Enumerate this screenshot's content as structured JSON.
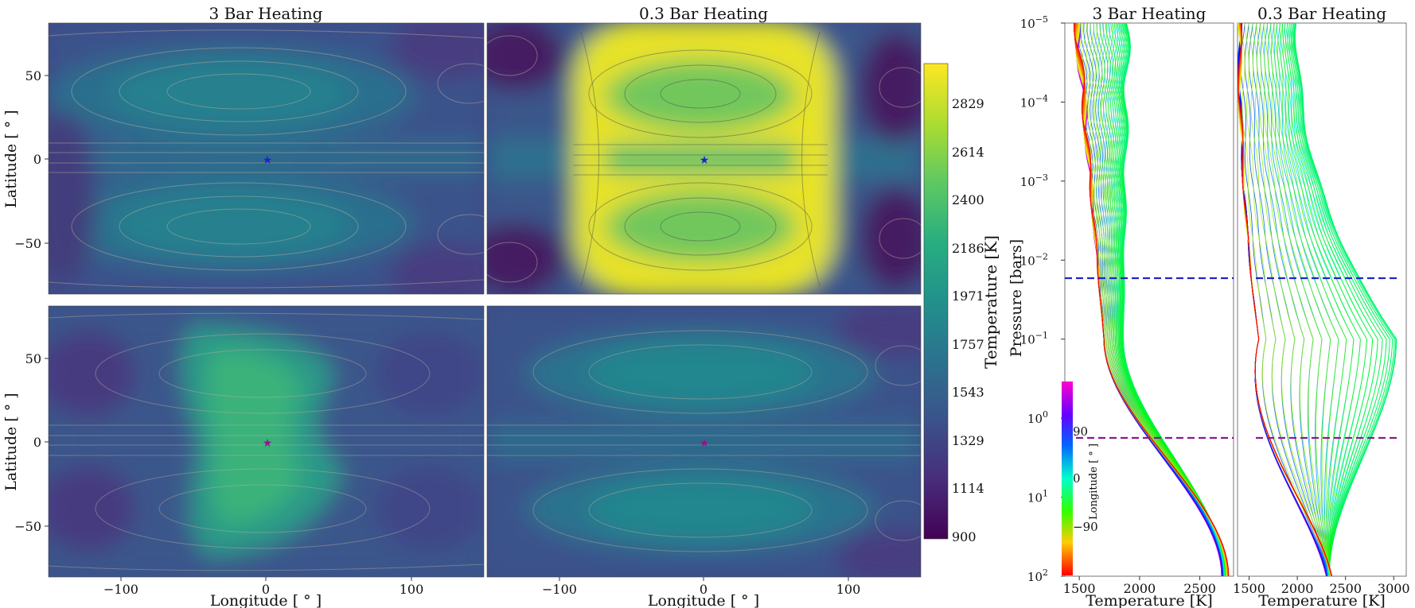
{
  "figure": {
    "map_titles": [
      "3 Bar Heating",
      "0.3 Bar Heating"
    ],
    "profile_titles": [
      "3 Bar Heating",
      "0.3 Bar Heating"
    ],
    "map_xlabel": "Longitude [$^\\circ$]",
    "map_ylabel": "Latitude [$^\\circ$]",
    "profile_xlabel": "Temperature [K]",
    "profile_ylabel": "Pressure [bars]",
    "colorbar_label": "Temperature [K]",
    "colorbar_ticks": [
      "2829",
      "2614",
      "2400",
      "2186",
      "1971",
      "1757",
      "1543",
      "1329",
      "1114",
      "900"
    ],
    "colormap": "viridis",
    "longitude_colormap": "gist_rainbow",
    "longitude_colorbar_label": "Longitude [$^\\circ$]",
    "longitude_colorbar_ticks": [
      "90",
      "0",
      "−90"
    ],
    "star_colors": [
      "#1f1fd6",
      "#8b1a8b"
    ],
    "dashed_line_colors": [
      "#2323c8",
      "#8b1a8b"
    ]
  },
  "chart_data": [
    {
      "type": "heatmap",
      "title": "3 Bar Heating",
      "row": "top",
      "xlabel": "",
      "ylabel": "Latitude [$^\\circ$]",
      "xlim": [
        -150,
        150
      ],
      "ylim": [
        -80,
        80
      ],
      "yticks": [
        "50",
        "0",
        "−50"
      ],
      "value_range_K": [
        1000,
        1900
      ],
      "hot_spot": {
        "lon": 0,
        "lat_halfwidth": 0
      },
      "marker": {
        "lon": 0,
        "lat": 0,
        "symbol": "star",
        "color": "#1f1fd6"
      },
      "streamlines": true
    },
    {
      "type": "heatmap",
      "title": "0.3 Bar Heating",
      "row": "top",
      "xlim": [
        -150,
        150
      ],
      "ylim": [
        -80,
        80
      ],
      "value_range_K": [
        1000,
        2950
      ],
      "hot_spot": {
        "lon_range": [
          -85,
          85
        ],
        "peak_K": 2950
      },
      "marker": {
        "lon": 0,
        "lat": 0,
        "symbol": "star",
        "color": "#1f1fd6"
      },
      "streamlines": true
    },
    {
      "type": "heatmap",
      "title": "",
      "row": "bottom",
      "xlabel": "Longitude [$^\\circ$]",
      "ylabel": "Latitude [$^\\circ$]",
      "xlim": [
        -150,
        150
      ],
      "ylim": [
        -80,
        80
      ],
      "xticks": [
        "−100",
        "0",
        "100"
      ],
      "yticks": [
        "50",
        "0",
        "−50"
      ],
      "value_range_K": [
        1100,
        2150
      ],
      "hot_spot": {
        "lon_range": [
          -50,
          60
        ],
        "peak_K": 2150
      },
      "marker": {
        "lon": 0,
        "lat": 0,
        "symbol": "star",
        "color": "#8b1a8b"
      },
      "streamlines": true
    },
    {
      "type": "heatmap",
      "title": "",
      "row": "bottom",
      "xlabel": "Longitude [$^\\circ$]",
      "xlim": [
        -150,
        150
      ],
      "ylim": [
        -80,
        80
      ],
      "xticks": [
        "−100",
        "0",
        "100"
      ],
      "value_range_K": [
        1000,
        1850
      ],
      "hot_spot": {
        "lon": 0,
        "lat_halfwidth": 0
      },
      "marker": {
        "lon": 0,
        "lat": 0,
        "symbol": "star",
        "color": "#8b1a8b"
      },
      "streamlines": true
    },
    {
      "type": "line",
      "title": "3 Bar Heating",
      "xlabel": "Temperature [K]",
      "ylabel": "Pressure [bars]",
      "xlim": [
        1380,
        2780
      ],
      "ylim": [
        100,
        1e-05
      ],
      "yscale": "log",
      "xticks": [
        "1500",
        "2000",
        "2500"
      ],
      "yticks": [
        "$10^{-5}$",
        "$10^{-4}$",
        "$10^{-3}$",
        "$10^{-2}$",
        "$10^{-1}$",
        "$10^{0}$",
        "$10^{1}$",
        "$10^{2}$"
      ],
      "series_count": 90,
      "longitude_range": [
        -180,
        180
      ],
      "profile_endpoints": {
        "T_top_K": [
          1480,
          1900
        ],
        "T_knee_K": [
          1650,
          1920
        ],
        "T_bottom_K": [
          2680,
          2740
        ]
      },
      "knee_pressure_bar": 0.2,
      "dashed_lines_bar": [
        0.018,
        1.8
      ]
    },
    {
      "type": "line",
      "title": "0.3 Bar Heating",
      "xlabel": "Temperature [K]",
      "xlim": [
        1380,
        3130
      ],
      "ylim": [
        100,
        1e-05
      ],
      "yscale": "log",
      "xticks": [
        "1500",
        "2000",
        "2500",
        "3000"
      ],
      "series_count": 90,
      "longitude_range": [
        -180,
        180
      ],
      "profile_endpoints": {
        "T_top_K": [
          1400,
          2000
        ],
        "T_peak_K": [
          1600,
          3030
        ],
        "T_bottom_K": [
          2300,
          2360
        ]
      },
      "peak_pressure_bar": 0.1,
      "dashed_lines_bar": [
        0.018,
        1.8
      ]
    }
  ]
}
